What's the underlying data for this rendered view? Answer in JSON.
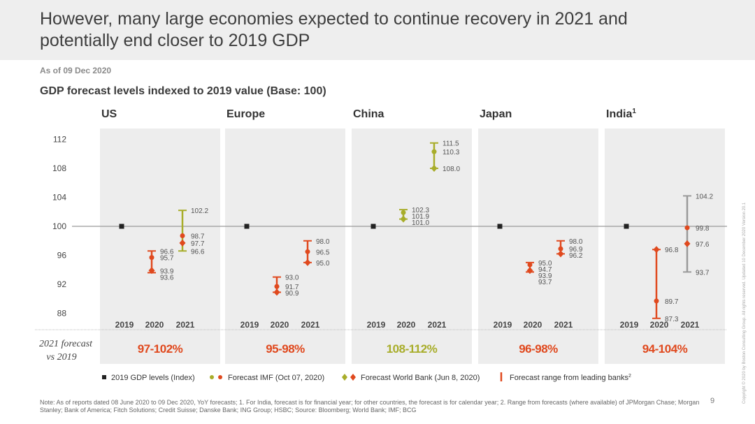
{
  "title": "However, many large economies expected to continue recovery in 2021 and potentially end closer to 2019 GDP",
  "as_of": "As of 09 Dec 2020",
  "chart_data": {
    "type": "scatter",
    "title": "GDP forecast levels indexed to 2019 value (Base: 100)",
    "ylim": [
      86,
      114
    ],
    "yticks": [
      "112",
      "108",
      "104",
      "100",
      "96",
      "92",
      "88"
    ],
    "reference_line": 100,
    "x_labels": [
      "2019",
      "2020",
      "2021"
    ],
    "row_label": "2021 forecast vs 2019",
    "colors": {
      "panel": "#ededed",
      "index": "#222222",
      "red": "#e0491e",
      "olive": "#a8ad2a",
      "grey_range": "#9a9a9a",
      "range_red_text": "#e0491e",
      "range_olive_text": "#a8ad2a"
    },
    "legend": [
      {
        "label": "2019 GDP levels (Index)",
        "marker": "square"
      },
      {
        "label": "Forecast IMF (Oct 07, 2020)",
        "marker": "circle"
      },
      {
        "label": "Forecast World Bank (Jun 8, 2020)",
        "marker": "diamond"
      },
      {
        "label": "Forecast range from leading banks",
        "marker": "bar",
        "superscript": "2"
      }
    ],
    "regions": [
      {
        "name": "US",
        "sup": "",
        "color": "red",
        "forecast_range": "97-102%",
        "y2019": 100,
        "y2020": {
          "high": 96.6,
          "low": 93.6,
          "imf": 95.7,
          "wb": 93.9,
          "range_color": "red",
          "labels": [
            "96.6",
            "95.7",
            "93.9",
            "93.6"
          ]
        },
        "y2021": {
          "high": 102.2,
          "low": 96.6,
          "imf": 98.7,
          "wb": 97.7,
          "range_color": "olive",
          "labels": [
            "102.2",
            "98.7",
            "97.7",
            "96.6"
          ]
        }
      },
      {
        "name": "Europe",
        "sup": "",
        "color": "red",
        "forecast_range": "95-98%",
        "y2019": 100,
        "y2020": {
          "high": 93.0,
          "low": 90.9,
          "imf": 91.7,
          "wb": 90.9,
          "range_color": "red",
          "labels": [
            "93.0",
            "91.7",
            "90.9"
          ]
        },
        "y2021": {
          "high": 98.0,
          "low": 95.0,
          "imf": 96.5,
          "wb": 95.0,
          "range_color": "red",
          "labels": [
            "98.0",
            "96.5",
            "95.0"
          ]
        }
      },
      {
        "name": "China",
        "sup": "",
        "color": "olive",
        "forecast_range": "108-112%",
        "y2019": 100,
        "y2020": {
          "high": 102.3,
          "low": 101.0,
          "imf": 101.9,
          "wb": 101.0,
          "range_color": "olive",
          "labels": [
            "102.3",
            "101.9",
            "101.0"
          ]
        },
        "y2021": {
          "high": 111.5,
          "low": 108.0,
          "imf": 110.3,
          "wb": 108.0,
          "range_color": "olive",
          "labels": [
            "111.5",
            "110.3",
            "108.0"
          ]
        }
      },
      {
        "name": "Japan",
        "sup": "",
        "color": "red",
        "forecast_range": "96-98%",
        "y2019": 100,
        "y2020": {
          "high": 95.0,
          "low": 93.7,
          "imf": 94.7,
          "wb": 93.9,
          "range_color": "red",
          "labels": [
            "95.0",
            "94.7",
            "93.9",
            "93.7"
          ]
        },
        "y2021": {
          "high": 98.0,
          "low": 96.2,
          "imf": 96.9,
          "wb": 96.2,
          "range_color": "red",
          "labels": [
            "98.0",
            "96.9",
            "96.2"
          ]
        }
      },
      {
        "name": "India",
        "sup": "1",
        "color": "red",
        "forecast_range": "94-104%",
        "y2019": 100,
        "y2020": {
          "high": 96.8,
          "low": 87.3,
          "imf": 89.7,
          "wb": 96.8,
          "range_color": "red",
          "labels": [
            "96.8",
            "89.7",
            "87.3"
          ]
        },
        "y2021": {
          "high": 104.2,
          "low": 93.7,
          "imf": 99.8,
          "wb": 97.6,
          "range_color": "grey",
          "labels": [
            "104.2",
            "99.8",
            "97.6",
            "93.7"
          ]
        }
      }
    ]
  },
  "note": "Note: As of reports dated 08 June 2020 to 09 Dec 2020, YoY forecasts; 1. For India, forecast is for financial year; for other countries, the forecast is for calendar year;  2. Range from forecasts (where available) of JPMorgan Chase; Morgan Stanley; Bank of America; Fitch Solutions; Credit Suisse; Danske Bank; ING Group; HSBC;  Source: Bloomberg; World Bank; IMF; BCG",
  "page_number": "9",
  "copyright": "Copyright © 2020 by Boston Consulting Group. All rights reserved. Updated 10 December 2020 Version 20.1"
}
